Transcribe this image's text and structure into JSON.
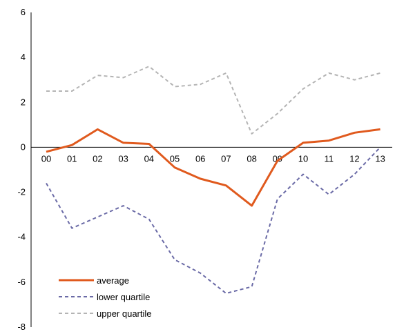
{
  "chart_data": {
    "type": "line",
    "categories": [
      "00",
      "01",
      "02",
      "03",
      "04",
      "05",
      "06",
      "07",
      "08",
      "09",
      "10",
      "11",
      "12",
      "13"
    ],
    "ylim": [
      -8,
      6
    ],
    "yticks": [
      6,
      4,
      2,
      0,
      -2,
      -4,
      -6,
      -8
    ],
    "grid": false,
    "legend_position": "bottom-left",
    "series": [
      {
        "name": "average",
        "color": "#e05a1e",
        "style": "solid",
        "values": [
          -0.2,
          0.1,
          0.8,
          0.2,
          0.15,
          -0.9,
          -1.4,
          -1.7,
          -2.6,
          -0.6,
          0.2,
          0.3,
          0.65,
          0.8
        ]
      },
      {
        "name": "lower quartile",
        "color": "#6a6aa6",
        "style": "dashed",
        "values": [
          -1.6,
          -3.6,
          -3.1,
          -2.6,
          -3.2,
          -5.0,
          -5.6,
          -6.5,
          -6.2,
          -2.3,
          -1.2,
          -2.1,
          -1.2,
          0.0
        ]
      },
      {
        "name": "upper quartile",
        "color": "#b4b4b4",
        "style": "dashed",
        "values": [
          2.5,
          2.5,
          3.2,
          3.1,
          3.6,
          2.7,
          2.8,
          3.3,
          0.6,
          1.5,
          2.6,
          3.3,
          3.0,
          3.3
        ]
      }
    ]
  }
}
